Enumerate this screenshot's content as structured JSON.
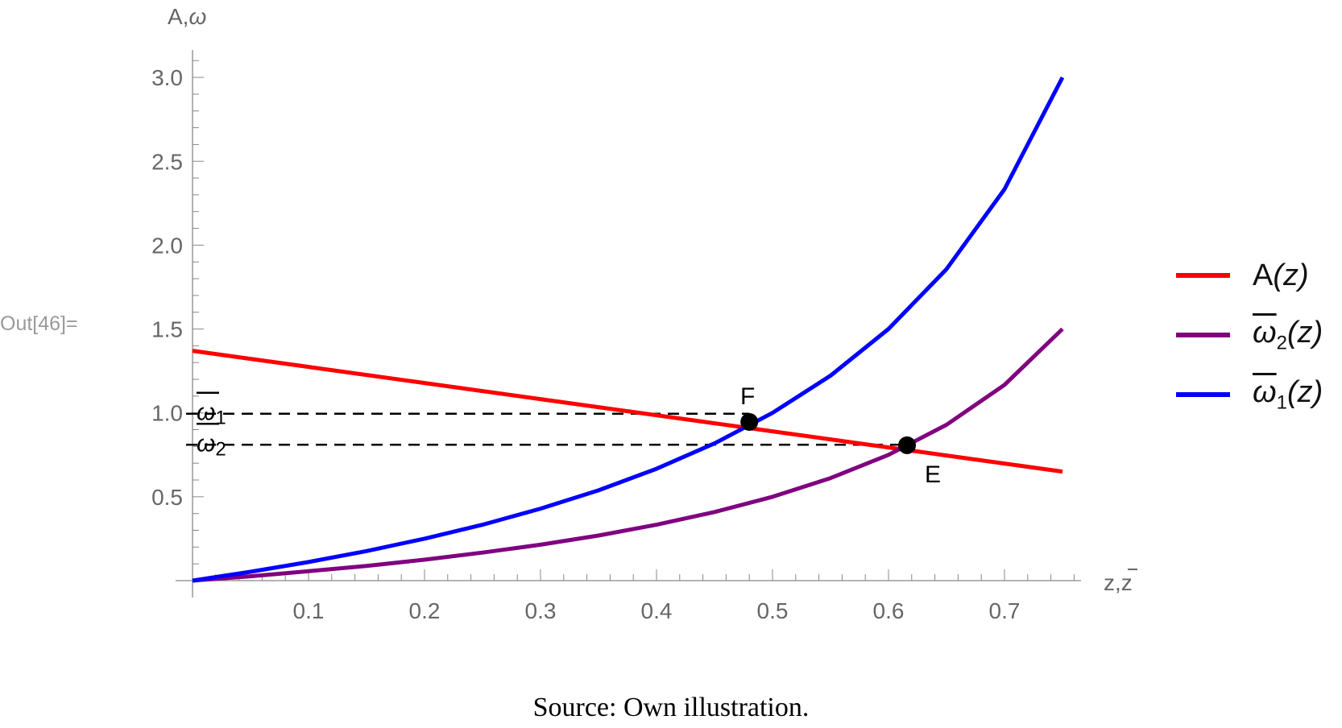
{
  "cell_label": "Out[46]=",
  "caption": "Source:  Own illustration.",
  "chart_data": {
    "type": "line",
    "title": "",
    "xlabel": "z, z̄",
    "ylabel": "A, ω",
    "xlim": [
      0,
      0.766
    ],
    "ylim": [
      0,
      3.15
    ],
    "x_ticks": [
      0.1,
      0.2,
      0.3,
      0.4,
      0.5,
      0.6,
      0.7
    ],
    "y_ticks": [
      0.5,
      1.0,
      1.5,
      2.0,
      2.5,
      3.0
    ],
    "grid": false,
    "legend_position": "right",
    "x": [
      0,
      0.05,
      0.1,
      0.15,
      0.2,
      0.25,
      0.3,
      0.35,
      0.4,
      0.45,
      0.5,
      0.55,
      0.6,
      0.65,
      0.7,
      0.75
    ],
    "series": [
      {
        "name": "A(z)",
        "color": "#ff0000",
        "values": [
          1.37,
          1.322,
          1.274,
          1.226,
          1.178,
          1.13,
          1.082,
          1.034,
          0.986,
          0.938,
          0.89,
          0.842,
          0.794,
          0.746,
          0.698,
          0.65
        ]
      },
      {
        "name": "ω̄2(z)",
        "color": "#800080",
        "values": [
          0,
          0.026,
          0.056,
          0.088,
          0.125,
          0.167,
          0.214,
          0.269,
          0.333,
          0.409,
          0.5,
          0.611,
          0.75,
          0.929,
          1.167,
          1.5
        ]
      },
      {
        "name": "ω̄1(z)",
        "color": "#0000ff",
        "values": [
          0,
          0.053,
          0.111,
          0.176,
          0.25,
          0.333,
          0.429,
          0.538,
          0.667,
          0.818,
          1.0,
          1.222,
          1.5,
          1.857,
          2.333,
          3.0
        ]
      }
    ],
    "reference_lines": [
      {
        "label": "ω̄1",
        "y": 0.995,
        "style": "dashed",
        "x_end": 0.48
      },
      {
        "label": "ω̄2",
        "y": 0.81,
        "style": "dashed",
        "x_end": 0.616
      }
    ],
    "points": [
      {
        "label": "F",
        "x": 0.48,
        "y": 0.946
      },
      {
        "label": "E",
        "x": 0.616,
        "y": 0.807
      }
    ]
  },
  "legend": [
    {
      "base": "A",
      "sub": "",
      "overline": false,
      "arg": "(z)",
      "color": "#ff0000"
    },
    {
      "base": "ω",
      "sub": "2",
      "overline": true,
      "arg": "(z)",
      "color": "#800080"
    },
    {
      "base": "ω",
      "sub": "1",
      "overline": true,
      "arg": "(z)",
      "color": "#0000ff"
    }
  ],
  "colors": {
    "axis": "#888888",
    "tick_label": "#666666",
    "dashed": "#000000"
  }
}
